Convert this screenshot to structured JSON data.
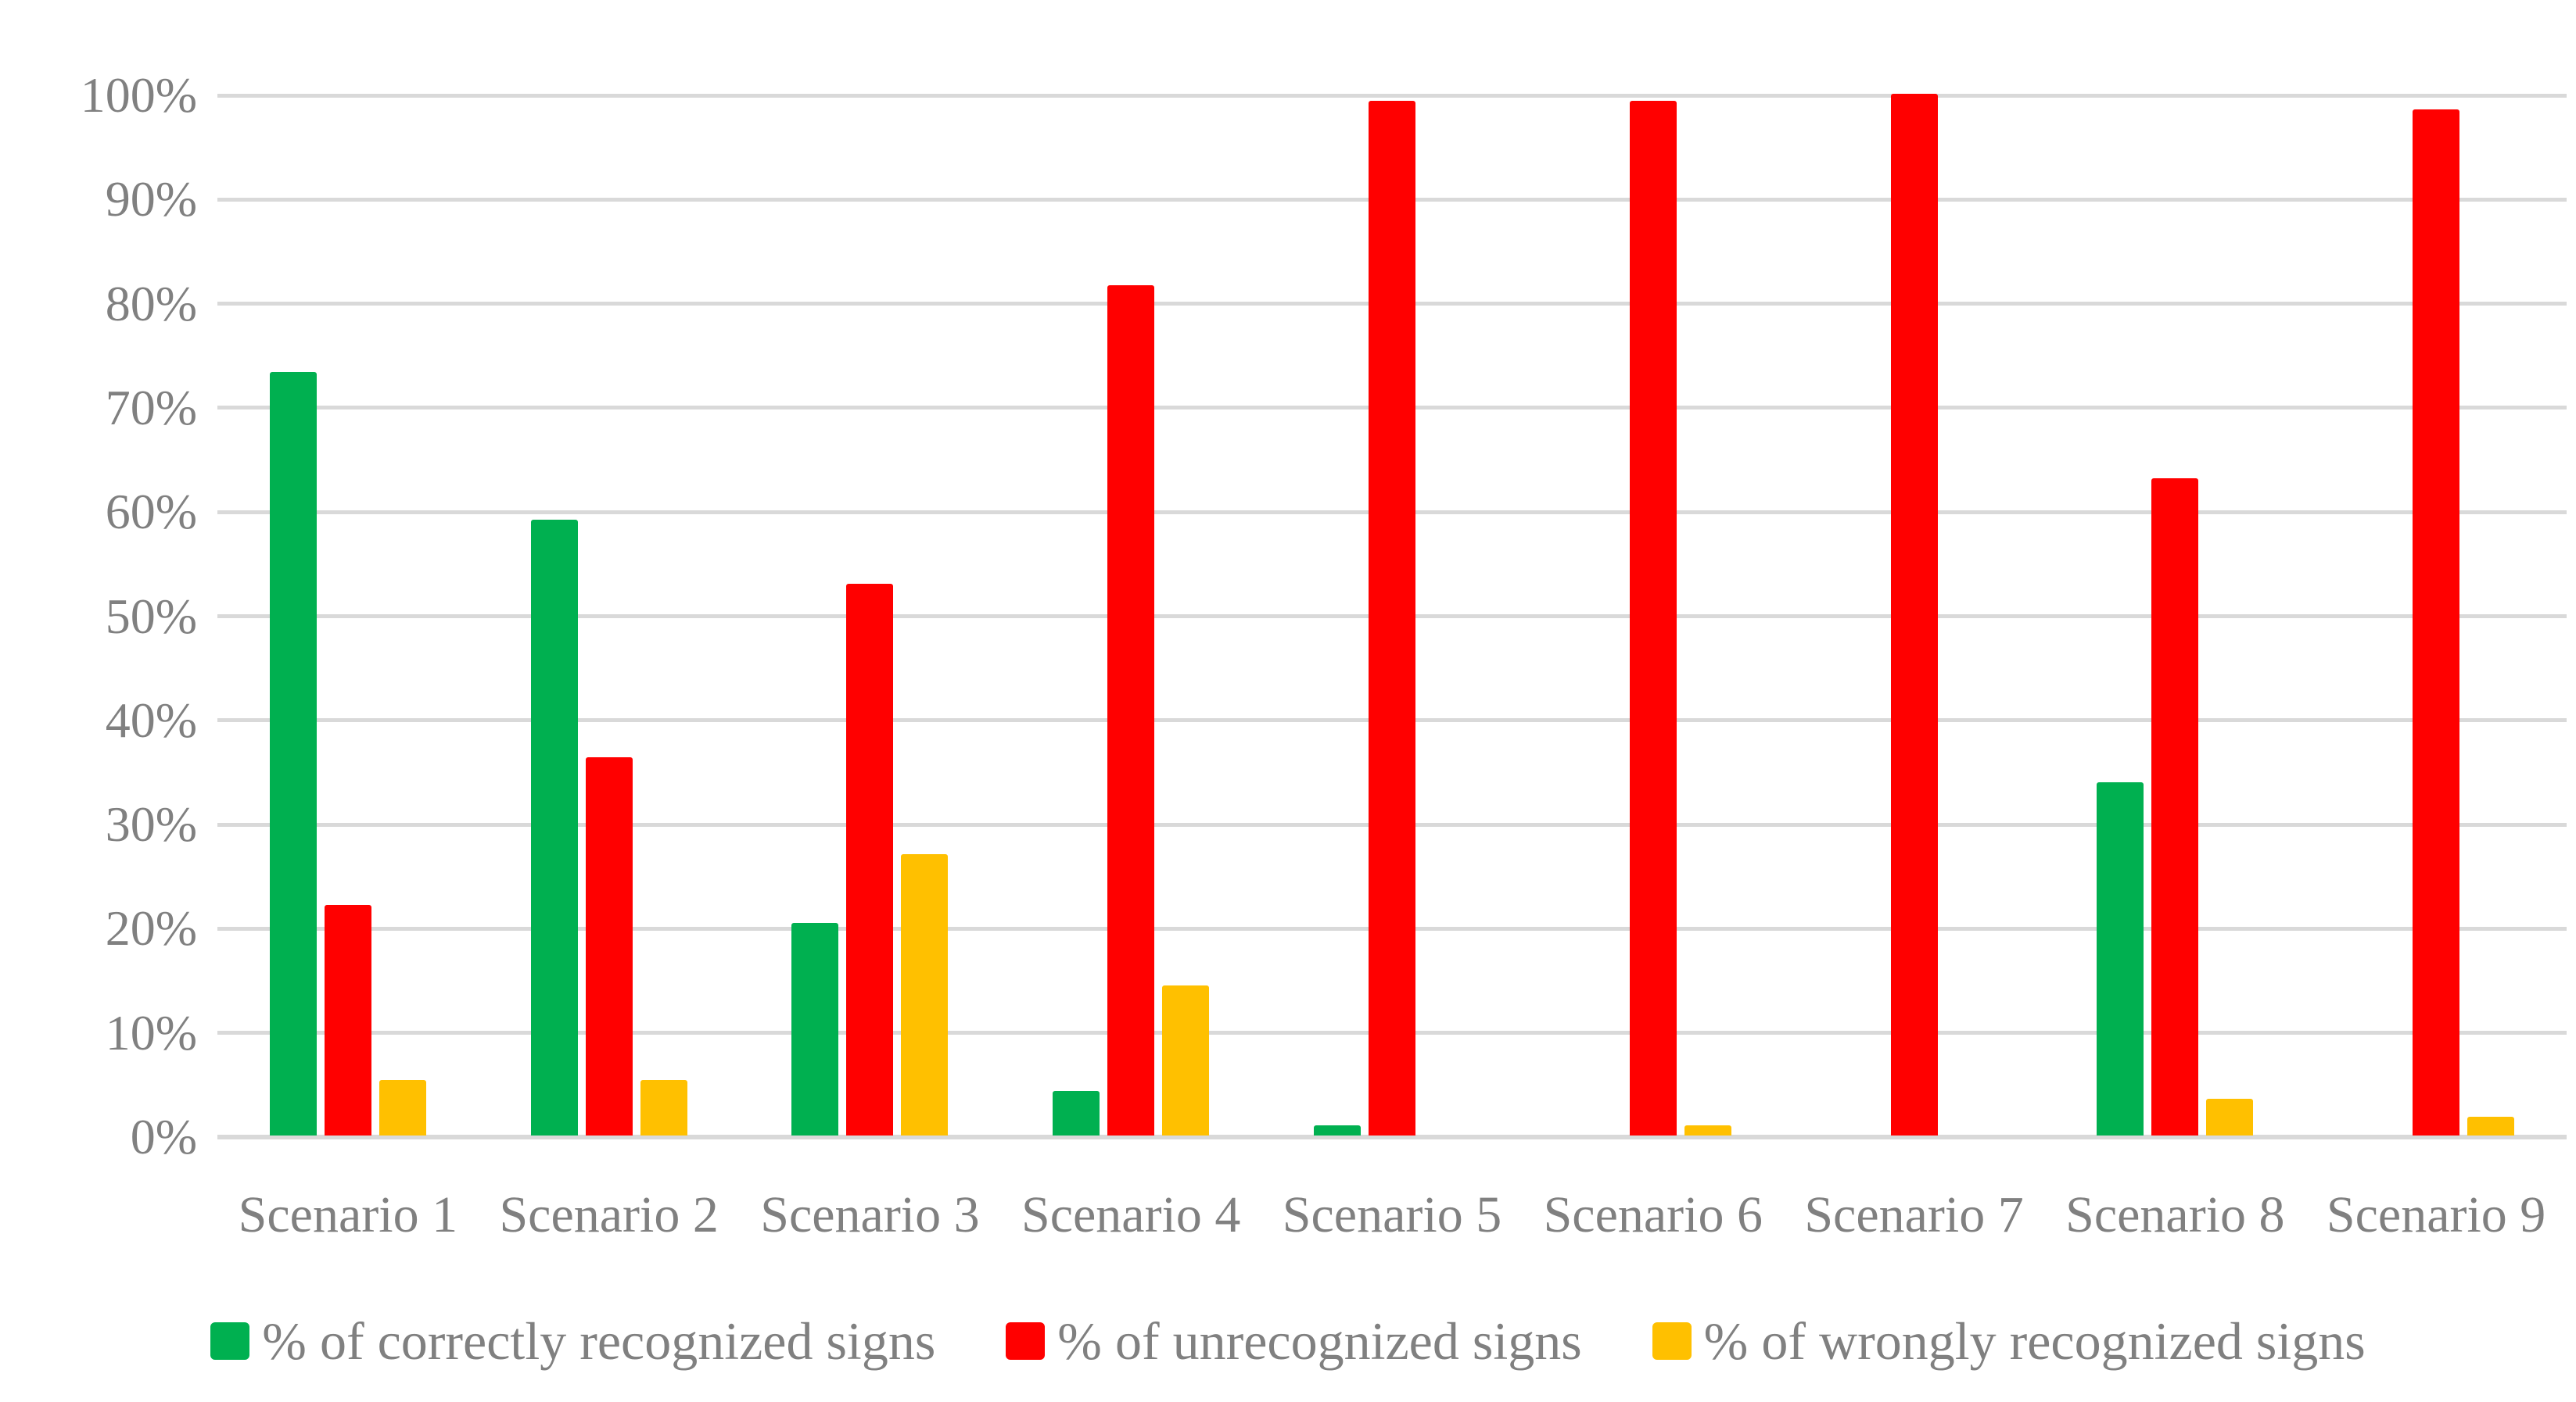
{
  "chart_data": {
    "type": "bar",
    "title": "",
    "xlabel": "",
    "ylabel": "",
    "ylim": [
      0,
      100
    ],
    "grid": true,
    "legend_position": "bottom",
    "yticks": [
      "0%",
      "10%",
      "20%",
      "30%",
      "40%",
      "50%",
      "60%",
      "70%",
      "80%",
      "90%",
      "100%"
    ],
    "categories": [
      "Scenario 1",
      "Scenario 2",
      "Scenario 3",
      "Scenario 4",
      "Scenario 5",
      "Scenario 6",
      "Scenario 7",
      "Scenario 8",
      "Scenario 9"
    ],
    "series": [
      {
        "name": "% of correctly recognized signs",
        "key": "correctly-recognized",
        "color": "#00B050",
        "values": [
          73.3,
          59.1,
          20.4,
          4.3,
          1.0,
          0,
          0,
          33.9,
          0
        ]
      },
      {
        "name": "% of unrecognized signs",
        "key": "unrecognized",
        "color": "#FF0000",
        "values": [
          22.1,
          36.3,
          53.0,
          81.6,
          99.3,
          99.3,
          100,
          63.1,
          98.5
        ]
      },
      {
        "name": "% of wrongly recognized signs",
        "key": "wrongly-recognized",
        "color": "#FFC000",
        "values": [
          5.3,
          5.3,
          27.0,
          14.4,
          0,
          1.0,
          0,
          3.5,
          1.8
        ]
      }
    ],
    "colors": {
      "gridline": "#D9D9D9",
      "axis_text": "#808080",
      "background": "#FFFFFF"
    }
  }
}
